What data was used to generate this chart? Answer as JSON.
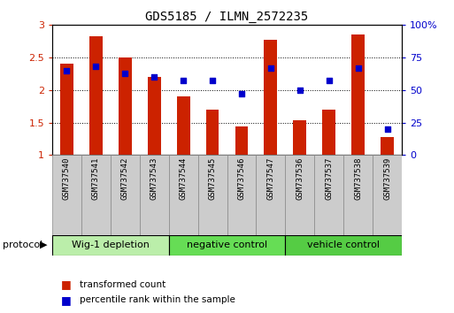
{
  "title": "GDS5185 / ILMN_2572235",
  "samples": [
    "GSM737540",
    "GSM737541",
    "GSM737542",
    "GSM737543",
    "GSM737544",
    "GSM737545",
    "GSM737546",
    "GSM737547",
    "GSM737536",
    "GSM737537",
    "GSM737538",
    "GSM737539"
  ],
  "bar_values": [
    2.4,
    2.83,
    2.5,
    2.2,
    1.9,
    1.7,
    1.44,
    2.77,
    1.53,
    1.7,
    2.85,
    1.27
  ],
  "dot_values": [
    65,
    68,
    63,
    60,
    57,
    57,
    47,
    67,
    50,
    57,
    67,
    20
  ],
  "bar_color": "#cc2200",
  "dot_color": "#0000cc",
  "ylim_left": [
    1,
    3
  ],
  "ylim_right": [
    0,
    100
  ],
  "yticks_left": [
    1,
    1.5,
    2,
    2.5,
    3
  ],
  "ytick_labels_left": [
    "1",
    "1.5",
    "2",
    "2.5",
    "3"
  ],
  "yticks_right": [
    0,
    25,
    50,
    75,
    100
  ],
  "ytick_labels_right": [
    "0",
    "25",
    "50",
    "75",
    "100%"
  ],
  "groups": [
    {
      "label": "Wig-1 depletion",
      "start": 0,
      "end": 3,
      "color": "#bbeeaa"
    },
    {
      "label": "negative control",
      "start": 4,
      "end": 7,
      "color": "#66dd55"
    },
    {
      "label": "vehicle control",
      "start": 8,
      "end": 11,
      "color": "#55cc44"
    }
  ],
  "protocol_label": "protocol",
  "legend_bar_label": "transformed count",
  "legend_dot_label": "percentile rank within the sample",
  "bar_width": 0.45,
  "label_box_color": "#cccccc",
  "label_box_edge": "#888888"
}
